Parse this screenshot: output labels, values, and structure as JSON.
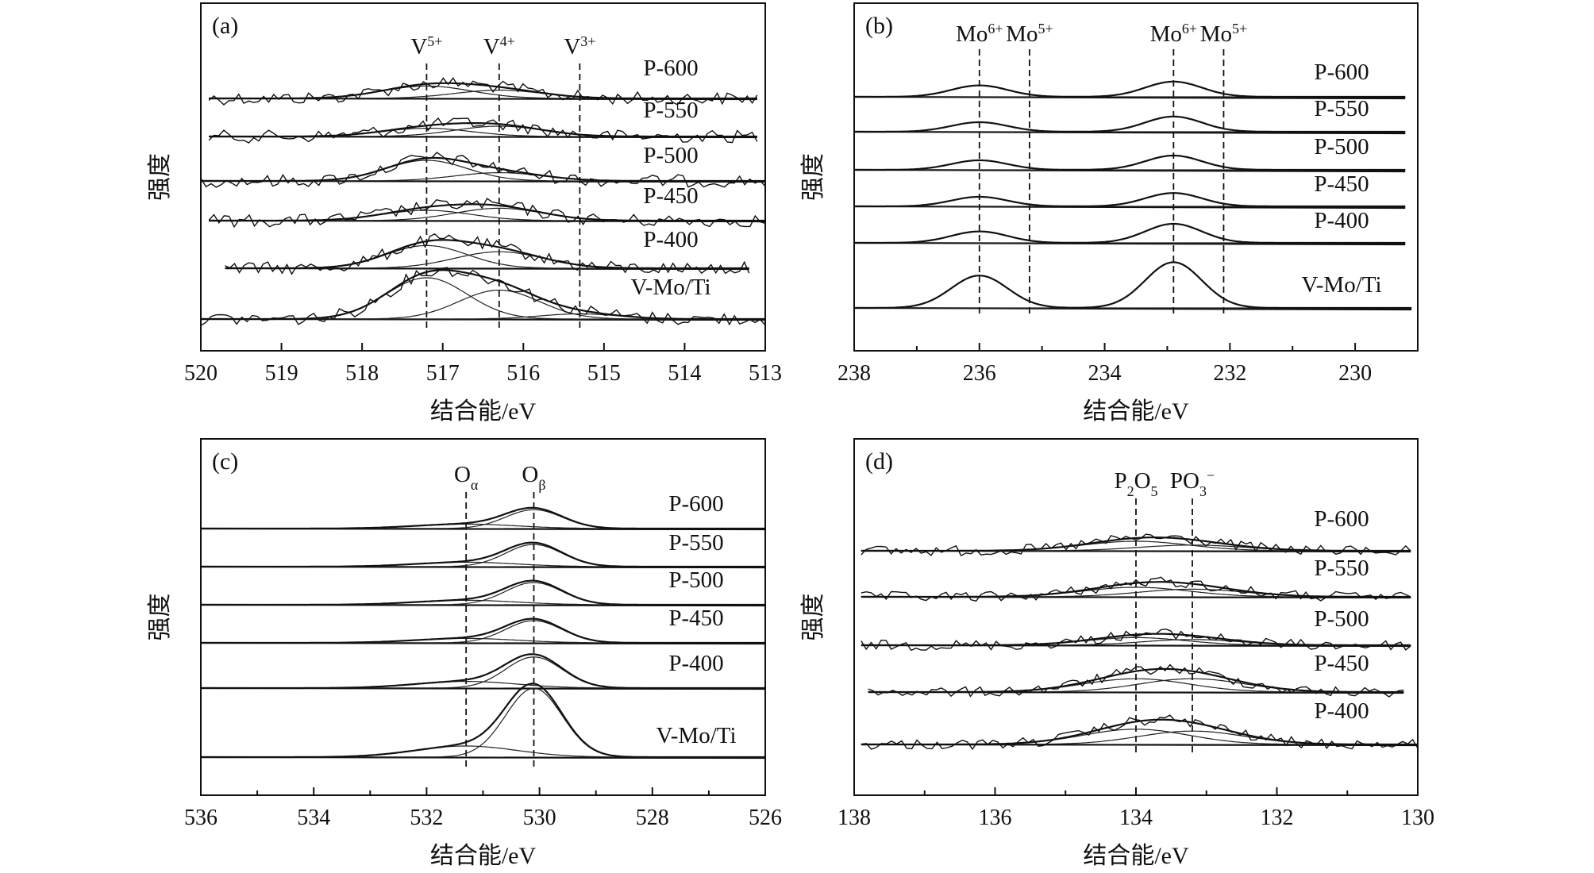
{
  "chart_data": [
    {
      "panel": "(a)",
      "type": "line",
      "xlabel": "结合能/eV",
      "ylabel": "强度",
      "xlim": [
        520,
        513
      ],
      "xticks": [
        520,
        519,
        518,
        517,
        516,
        515,
        514,
        513
      ],
      "noisy": true,
      "peak_markers": [
        {
          "label": "V",
          "sup": "5+",
          "x": 517.2
        },
        {
          "label": "V",
          "sup": "4+",
          "x": 516.3
        },
        {
          "label": "V",
          "sup": "3+",
          "x": 515.3
        }
      ],
      "series": [
        {
          "name": "P-600",
          "x_start": 519.9,
          "x_end": 513.1,
          "peaks": [
            {
              "x": 517.2,
              "h": 0.12,
              "w": 0.55
            },
            {
              "x": 516.3,
              "h": 0.08,
              "w": 0.55
            }
          ]
        },
        {
          "name": "P-550",
          "x_start": 519.9,
          "x_end": 513.1,
          "peaks": [
            {
              "x": 517.2,
              "h": 0.08,
              "w": 0.55
            },
            {
              "x": 516.3,
              "h": 0.1,
              "w": 0.55
            }
          ]
        },
        {
          "name": "P-500",
          "x_start": 520.0,
          "x_end": 513.0,
          "peaks": [
            {
              "x": 517.2,
              "h": 0.2,
              "w": 0.5
            },
            {
              "x": 516.3,
              "h": 0.08,
              "w": 0.55
            }
          ]
        },
        {
          "name": "P-450",
          "x_start": 519.9,
          "x_end": 513.0,
          "peaks": [
            {
              "x": 517.2,
              "h": 0.1,
              "w": 0.55
            },
            {
              "x": 516.3,
              "h": 0.12,
              "w": 0.55
            }
          ]
        },
        {
          "name": "P-400",
          "x_start": 519.7,
          "x_end": 513.2,
          "peaks": [
            {
              "x": 517.2,
              "h": 0.22,
              "w": 0.5
            },
            {
              "x": 516.3,
              "h": 0.16,
              "w": 0.55
            }
          ]
        },
        {
          "name": "V-Mo/Ti",
          "x_start": 520.0,
          "x_end": 513.0,
          "peaks": [
            {
              "x": 517.2,
              "h": 0.4,
              "w": 0.5
            },
            {
              "x": 516.3,
              "h": 0.28,
              "w": 0.5
            },
            {
              "x": 515.3,
              "h": 0.05,
              "w": 0.5
            }
          ]
        }
      ]
    },
    {
      "panel": "(b)",
      "type": "line",
      "xlabel": "结合能/eV",
      "ylabel": "强度",
      "xlim": [
        238,
        229
      ],
      "xticks": [
        238,
        236,
        234,
        232,
        230
      ],
      "noisy": false,
      "peak_markers": [
        {
          "label": "Mo",
          "sup": "6+",
          "x": 236.0
        },
        {
          "label": "Mo",
          "sup": "5+",
          "x": 235.2
        },
        {
          "label": "Mo",
          "sup": "6+",
          "x": 232.9
        },
        {
          "label": "Mo",
          "sup": "5+",
          "x": 232.1
        }
      ],
      "series": [
        {
          "name": "P-600",
          "x_start": 238.0,
          "x_end": 229.2,
          "peaks": [
            {
              "x": 236.0,
              "h": 0.12,
              "w": 0.45
            },
            {
              "x": 232.9,
              "h": 0.16,
              "w": 0.45
            }
          ]
        },
        {
          "name": "P-550",
          "x_start": 238.0,
          "x_end": 229.2,
          "peaks": [
            {
              "x": 236.0,
              "h": 0.1,
              "w": 0.45
            },
            {
              "x": 232.9,
              "h": 0.16,
              "w": 0.45
            }
          ]
        },
        {
          "name": "P-500",
          "x_start": 238.0,
          "x_end": 229.2,
          "peaks": [
            {
              "x": 236.0,
              "h": 0.1,
              "w": 0.45
            },
            {
              "x": 232.9,
              "h": 0.15,
              "w": 0.45
            }
          ]
        },
        {
          "name": "P-450",
          "x_start": 238.0,
          "x_end": 229.2,
          "peaks": [
            {
              "x": 236.0,
              "h": 0.1,
              "w": 0.45
            },
            {
              "x": 232.9,
              "h": 0.14,
              "w": 0.45
            }
          ]
        },
        {
          "name": "P-400",
          "x_start": 238.0,
          "x_end": 229.2,
          "peaks": [
            {
              "x": 236.0,
              "h": 0.12,
              "w": 0.45
            },
            {
              "x": 232.9,
              "h": 0.2,
              "w": 0.45
            }
          ]
        },
        {
          "name": "V-Mo/Ti",
          "x_start": 238.0,
          "x_end": 229.1,
          "peaks": [
            {
              "x": 236.0,
              "h": 0.34,
              "w": 0.45
            },
            {
              "x": 232.9,
              "h": 0.48,
              "w": 0.45
            }
          ]
        }
      ]
    },
    {
      "panel": "(c)",
      "type": "line",
      "xlabel": "结合能/eV",
      "ylabel": "强度",
      "xlim": [
        536,
        526
      ],
      "xticks": [
        536,
        534,
        532,
        530,
        528,
        526
      ],
      "noisy": false,
      "peak_markers": [
        {
          "label": "O",
          "sub": "α",
          "x": 531.3
        },
        {
          "label": "O",
          "sub": "β",
          "x": 530.1
        }
      ],
      "series": [
        {
          "name": "P-600",
          "x_start": 536.0,
          "x_end": 526.0,
          "peaks": [
            {
              "x": 530.1,
              "h": 0.17,
              "w": 0.5
            },
            {
              "x": 531.3,
              "h": 0.04,
              "w": 0.9
            }
          ]
        },
        {
          "name": "P-550",
          "x_start": 536.0,
          "x_end": 526.0,
          "peaks": [
            {
              "x": 530.1,
              "h": 0.2,
              "w": 0.5
            },
            {
              "x": 531.3,
              "h": 0.04,
              "w": 0.9
            }
          ]
        },
        {
          "name": "P-500",
          "x_start": 536.0,
          "x_end": 526.0,
          "peaks": [
            {
              "x": 530.1,
              "h": 0.2,
              "w": 0.5
            },
            {
              "x": 531.3,
              "h": 0.04,
              "w": 0.9
            }
          ]
        },
        {
          "name": "P-450",
          "x_start": 536.0,
          "x_end": 526.0,
          "peaks": [
            {
              "x": 530.1,
              "h": 0.2,
              "w": 0.5
            },
            {
              "x": 531.3,
              "h": 0.04,
              "w": 0.9
            }
          ]
        },
        {
          "name": "P-400",
          "x_start": 536.0,
          "x_end": 526.0,
          "peaks": [
            {
              "x": 530.1,
              "h": 0.28,
              "w": 0.5
            },
            {
              "x": 531.3,
              "h": 0.06,
              "w": 0.9
            }
          ]
        },
        {
          "name": "V-Mo/Ti",
          "x_start": 536.0,
          "x_end": 526.0,
          "peaks": [
            {
              "x": 530.1,
              "h": 0.62,
              "w": 0.5
            },
            {
              "x": 531.3,
              "h": 0.1,
              "w": 0.9
            }
          ]
        }
      ]
    },
    {
      "panel": "(d)",
      "type": "line",
      "xlabel": "结合能/eV",
      "ylabel": "强度",
      "xlim": [
        138,
        130
      ],
      "xticks": [
        138,
        136,
        134,
        132,
        130
      ],
      "noisy": true,
      "peak_markers": [
        {
          "label": "P",
          "sub": "2",
          "label2": "O",
          "sub2": "5",
          "x": 134.0
        },
        {
          "label": "PO",
          "sub": "3",
          "sup": "−",
          "x": 133.2
        }
      ],
      "series": [
        {
          "name": "P-600",
          "x_start": 137.9,
          "x_end": 130.1,
          "peaks": [
            {
              "x": 134.0,
              "h": 0.1,
              "w": 0.75
            },
            {
              "x": 133.2,
              "h": 0.06,
              "w": 0.75
            }
          ]
        },
        {
          "name": "P-550",
          "x_start": 137.9,
          "x_end": 130.1,
          "peaks": [
            {
              "x": 134.0,
              "h": 0.1,
              "w": 0.75
            },
            {
              "x": 133.2,
              "h": 0.08,
              "w": 0.75
            }
          ]
        },
        {
          "name": "P-500",
          "x_start": 137.9,
          "x_end": 130.1,
          "peaks": [
            {
              "x": 134.0,
              "h": 0.08,
              "w": 0.7
            },
            {
              "x": 133.2,
              "h": 0.06,
              "w": 0.7
            }
          ]
        },
        {
          "name": "P-450",
          "x_start": 137.8,
          "x_end": 130.2,
          "peaks": [
            {
              "x": 134.0,
              "h": 0.14,
              "w": 0.75
            },
            {
              "x": 133.2,
              "h": 0.14,
              "w": 0.75
            }
          ]
        },
        {
          "name": "P-400",
          "x_start": 137.9,
          "x_end": 130.0,
          "peaks": [
            {
              "x": 134.0,
              "h": 0.16,
              "w": 0.75
            },
            {
              "x": 133.2,
              "h": 0.14,
              "w": 0.75
            }
          ]
        }
      ]
    }
  ]
}
